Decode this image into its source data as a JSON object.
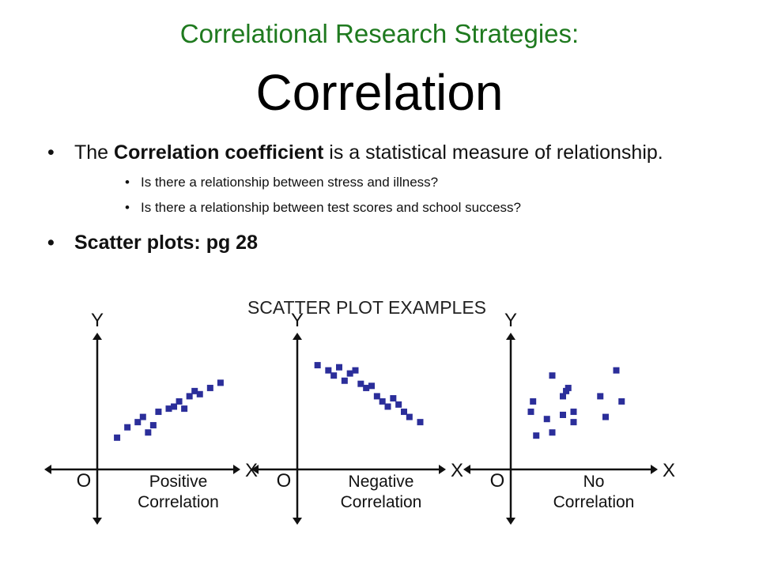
{
  "title": {
    "line1": "Correlational Research Strategies:",
    "line2": "Correlation"
  },
  "bullets": {
    "first": {
      "prefix": "The ",
      "bold": "Correlation coefficient",
      "suffix": " is a statistical measure of relationship."
    },
    "sub": [
      "Is there a relationship between stress and illness?",
      "Is there a relationship between test scores and school success?"
    ],
    "second": "Scatter plots: pg 28"
  },
  "colors": {
    "title": "#1f7a1f",
    "marker": "#2b2e9a",
    "axis": "#111111"
  },
  "figure": {
    "heading": "SCATTER PLOT EXAMPLES",
    "y_label": "Y",
    "x_label": "X",
    "origin_label": "O"
  },
  "chart_data": [
    {
      "type": "scatter",
      "title": "",
      "caption": [
        "Positive",
        "Correlation"
      ],
      "xlabel": "X",
      "ylabel": "Y",
      "grid": false,
      "points": [
        [
          1,
          2
        ],
        [
          2,
          3
        ],
        [
          3,
          3.5
        ],
        [
          3.5,
          4
        ],
        [
          4,
          2.5
        ],
        [
          4.5,
          3.2
        ],
        [
          5,
          4.5
        ],
        [
          6,
          4.8
        ],
        [
          6.5,
          5
        ],
        [
          7,
          5.5
        ],
        [
          7.5,
          4.8
        ],
        [
          8,
          6
        ],
        [
          8.5,
          6.5
        ],
        [
          9,
          6.2
        ],
        [
          10,
          6.8
        ],
        [
          11,
          7.3
        ]
      ]
    },
    {
      "type": "scatter",
      "title": "",
      "caption": [
        "Negative",
        "Correlation"
      ],
      "xlabel": "X",
      "ylabel": "Y",
      "grid": false,
      "points": [
        [
          1,
          9
        ],
        [
          2,
          8.5
        ],
        [
          2.5,
          8
        ],
        [
          3,
          8.8
        ],
        [
          3.5,
          7.5
        ],
        [
          4,
          8.2
        ],
        [
          4.5,
          8.5
        ],
        [
          5,
          7.2
        ],
        [
          5.5,
          6.8
        ],
        [
          6,
          7
        ],
        [
          6.5,
          6
        ],
        [
          7,
          5.5
        ],
        [
          7.5,
          5
        ],
        [
          8,
          5.8
        ],
        [
          8.5,
          5.2
        ],
        [
          9,
          4.5
        ],
        [
          9.5,
          4
        ],
        [
          10.5,
          3.5
        ]
      ]
    },
    {
      "type": "scatter",
      "title": "",
      "caption": [
        "No",
        "Correlation"
      ],
      "xlabel": "X",
      "ylabel": "Y",
      "grid": false,
      "points": [
        [
          1,
          4.5
        ],
        [
          1.2,
          5.5
        ],
        [
          1.5,
          2.2
        ],
        [
          2.5,
          3.8
        ],
        [
          3,
          8
        ],
        [
          3,
          2.5
        ],
        [
          4,
          4.2
        ],
        [
          4,
          6
        ],
        [
          4.3,
          6.5
        ],
        [
          4.5,
          6.8
        ],
        [
          5,
          3.5
        ],
        [
          5,
          4.5
        ],
        [
          7.5,
          6
        ],
        [
          8,
          4
        ],
        [
          9,
          8.5
        ],
        [
          9.5,
          5.5
        ]
      ]
    }
  ]
}
